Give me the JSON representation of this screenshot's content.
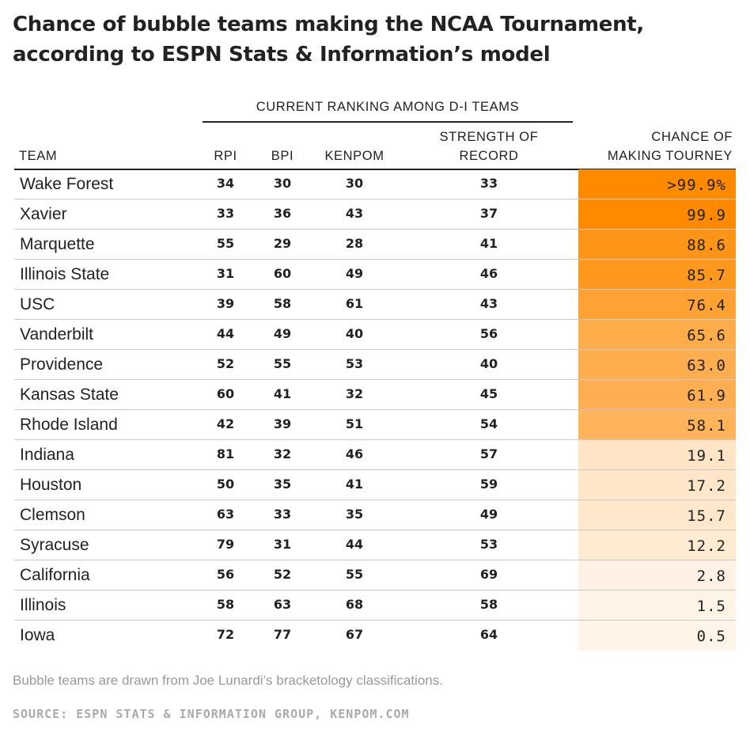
{
  "title": "Chance of bubble teams making the NCAA Tournament, according to ESPN Stats & Information’s model",
  "group_header": "CURRENT RANKING AMONG D-I TEAMS",
  "columns": {
    "team": "TEAM",
    "rpi": "RPI",
    "bpi": "BPI",
    "kenpom": "KENPOM",
    "sor_line1": "STRENGTH OF",
    "sor_line2": "RECORD",
    "chance_line1": "CHANCE OF",
    "chance_line2": "MAKING TOURNEY"
  },
  "colors": {
    "accent_high": "#ff8a00",
    "accent_low": "#fff7ee"
  },
  "chart_data": {
    "type": "table",
    "columns": [
      "TEAM",
      "RPI",
      "BPI",
      "KENPOM",
      "STRENGTH OF RECORD",
      "CHANCE OF MAKING TOURNEY"
    ],
    "rows": [
      {
        "team": "Wake Forest",
        "rpi": "34",
        "bpi": "30",
        "kenpom": "30",
        "sor": "33",
        "chance": ">99.9%",
        "chance_value": 99.95
      },
      {
        "team": "Xavier",
        "rpi": "33",
        "bpi": "36",
        "kenpom": "43",
        "sor": "37",
        "chance": "99.9",
        "chance_value": 99.9
      },
      {
        "team": "Marquette",
        "rpi": "55",
        "bpi": "29",
        "kenpom": "28",
        "sor": "41",
        "chance": "88.6",
        "chance_value": 88.6
      },
      {
        "team": "Illinois State",
        "rpi": "31",
        "bpi": "60",
        "kenpom": "49",
        "sor": "46",
        "chance": "85.7",
        "chance_value": 85.7
      },
      {
        "team": "USC",
        "rpi": "39",
        "bpi": "58",
        "kenpom": "61",
        "sor": "43",
        "chance": "76.4",
        "chance_value": 76.4
      },
      {
        "team": "Vanderbilt",
        "rpi": "44",
        "bpi": "49",
        "kenpom": "40",
        "sor": "56",
        "chance": "65.6",
        "chance_value": 65.6
      },
      {
        "team": "Providence",
        "rpi": "52",
        "bpi": "55",
        "kenpom": "53",
        "sor": "40",
        "chance": "63.0",
        "chance_value": 63.0
      },
      {
        "team": "Kansas State",
        "rpi": "60",
        "bpi": "41",
        "kenpom": "32",
        "sor": "45",
        "chance": "61.9",
        "chance_value": 61.9
      },
      {
        "team": "Rhode Island",
        "rpi": "42",
        "bpi": "39",
        "kenpom": "51",
        "sor": "54",
        "chance": "58.1",
        "chance_value": 58.1
      },
      {
        "team": "Indiana",
        "rpi": "81",
        "bpi": "32",
        "kenpom": "46",
        "sor": "57",
        "chance": "19.1",
        "chance_value": 19.1
      },
      {
        "team": "Houston",
        "rpi": "50",
        "bpi": "35",
        "kenpom": "41",
        "sor": "59",
        "chance": "17.2",
        "chance_value": 17.2
      },
      {
        "team": "Clemson",
        "rpi": "63",
        "bpi": "33",
        "kenpom": "35",
        "sor": "49",
        "chance": "15.7",
        "chance_value": 15.7
      },
      {
        "team": "Syracuse",
        "rpi": "79",
        "bpi": "31",
        "kenpom": "44",
        "sor": "53",
        "chance": "12.2",
        "chance_value": 12.2
      },
      {
        "team": "California",
        "rpi": "56",
        "bpi": "52",
        "kenpom": "55",
        "sor": "69",
        "chance": "2.8",
        "chance_value": 2.8
      },
      {
        "team": "Illinois",
        "rpi": "58",
        "bpi": "63",
        "kenpom": "68",
        "sor": "58",
        "chance": "1.5",
        "chance_value": 1.5
      },
      {
        "team": "Iowa",
        "rpi": "72",
        "bpi": "77",
        "kenpom": "67",
        "sor": "64",
        "chance": "0.5",
        "chance_value": 0.5
      }
    ]
  },
  "note": "Bubble teams are drawn from Joe Lunardi’s bracketology classifications.",
  "source": "SOURCE: ESPN STATS & INFORMATION GROUP, KENPOM.COM"
}
